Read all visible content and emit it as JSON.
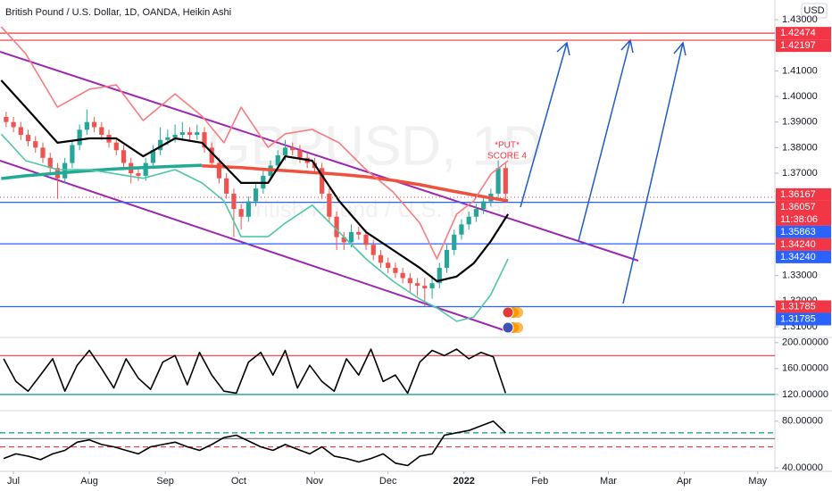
{
  "title": "British Pound / U.S. Dollar, 1D, OANDA, Heikin Ashi",
  "currency": "USD",
  "watermark": "GBPUSD, 1D",
  "watermark_subtitle": "British Pound / U.S. Dollar",
  "annotations": [
    "*PUT*",
    "SCORE 4"
  ],
  "chart_data": [
    {
      "type": "candlestick",
      "xlim": [
        -5.5,
        311
      ],
      "ylim": [
        1.3058,
        1.4377
      ],
      "yticks": [
        {
          "value": 1.43,
          "label": "1.43000"
        },
        {
          "value": 1.41,
          "label": "1.41000"
        },
        {
          "value": 1.4,
          "label": "1.40000"
        },
        {
          "value": 1.39,
          "label": "1.39000"
        },
        {
          "value": 1.38,
          "label": "1.38000"
        },
        {
          "value": 1.37,
          "label": "1.37000"
        },
        {
          "value": 1.33,
          "label": "1.33000"
        },
        {
          "value": 1.32,
          "label": "1.32000"
        },
        {
          "value": 1.31,
          "label": "1.31000"
        }
      ],
      "up_color": "#26a69a",
      "down_color": "#ef5350",
      "x": [
        -3,
        0,
        3,
        6,
        9,
        12,
        15,
        18,
        21,
        24,
        27,
        30,
        33,
        36,
        39,
        42,
        45,
        48,
        51,
        54,
        57,
        60,
        63,
        66,
        69,
        72,
        75,
        78,
        81,
        84,
        87,
        90,
        93,
        96,
        99,
        102,
        105,
        108,
        111,
        114,
        117,
        120,
        123,
        126,
        129,
        132,
        135,
        138,
        141,
        144,
        147,
        150,
        153,
        156,
        159,
        162,
        165,
        168,
        171,
        174,
        177,
        180,
        183,
        186,
        189,
        192,
        195,
        198,
        201
      ],
      "open": [
        1.392,
        1.39,
        1.388,
        1.385,
        1.3825,
        1.38,
        1.376,
        1.372,
        1.368,
        1.374,
        1.381,
        1.387,
        1.39,
        1.388,
        1.385,
        1.382,
        1.379,
        1.374,
        1.37,
        1.369,
        1.374,
        1.379,
        1.383,
        1.384,
        1.385,
        1.386,
        1.385,
        1.386,
        1.38,
        1.374,
        1.368,
        1.362,
        1.356,
        1.353,
        1.359,
        1.364,
        1.369,
        1.373,
        1.377,
        1.38,
        1.379,
        1.376,
        1.374,
        1.372,
        1.362,
        1.353,
        1.345,
        1.343,
        1.347,
        1.346,
        1.342,
        1.338,
        1.335,
        1.333,
        1.331,
        1.329,
        1.327,
        1.326,
        1.325,
        1.327,
        1.333,
        1.34,
        1.346,
        1.35,
        1.353,
        1.356,
        1.359,
        1.362,
        1.372
      ],
      "high": [
        1.394,
        1.392,
        1.39,
        1.387,
        1.3845,
        1.382,
        1.378,
        1.374,
        1.376,
        1.383,
        1.389,
        1.395,
        1.392,
        1.39,
        1.387,
        1.384,
        1.381,
        1.376,
        1.372,
        1.376,
        1.381,
        1.388,
        1.387,
        1.389,
        1.39,
        1.388,
        1.389,
        1.388,
        1.382,
        1.376,
        1.37,
        1.364,
        1.358,
        1.361,
        1.366,
        1.371,
        1.375,
        1.379,
        1.383,
        1.382,
        1.381,
        1.378,
        1.376,
        1.374,
        1.364,
        1.355,
        1.347,
        1.35,
        1.349,
        1.348,
        1.344,
        1.34,
        1.337,
        1.335,
        1.333,
        1.331,
        1.329,
        1.329,
        1.33,
        1.335,
        1.342,
        1.348,
        1.352,
        1.355,
        1.358,
        1.361,
        1.364,
        1.375,
        1.374
      ],
      "low": [
        1.388,
        1.386,
        1.383,
        1.3805,
        1.378,
        1.374,
        1.37,
        1.36,
        1.366,
        1.372,
        1.379,
        1.385,
        1.386,
        1.383,
        1.38,
        1.377,
        1.372,
        1.366,
        1.367,
        1.367,
        1.372,
        1.377,
        1.381,
        1.382,
        1.383,
        1.383,
        1.383,
        1.378,
        1.372,
        1.366,
        1.36,
        1.345,
        1.348,
        1.351,
        1.357,
        1.362,
        1.367,
        1.371,
        1.375,
        1.377,
        1.374,
        1.372,
        1.37,
        1.36,
        1.351,
        1.34,
        1.34,
        1.341,
        1.344,
        1.34,
        1.336,
        1.333,
        1.331,
        1.329,
        1.327,
        1.323,
        1.322,
        1.318,
        1.321,
        1.325,
        1.331,
        1.338,
        1.344,
        1.348,
        1.351,
        1.354,
        1.357,
        1.36,
        1.36
      ],
      "close": [
        1.39,
        1.388,
        1.385,
        1.3825,
        1.38,
        1.376,
        1.372,
        1.368,
        1.374,
        1.381,
        1.387,
        1.39,
        1.388,
        1.385,
        1.382,
        1.379,
        1.374,
        1.37,
        1.369,
        1.374,
        1.379,
        1.383,
        1.384,
        1.385,
        1.386,
        1.385,
        1.386,
        1.38,
        1.374,
        1.368,
        1.362,
        1.356,
        1.353,
        1.359,
        1.364,
        1.369,
        1.373,
        1.377,
        1.38,
        1.379,
        1.376,
        1.374,
        1.372,
        1.362,
        1.353,
        1.345,
        1.343,
        1.347,
        1.346,
        1.342,
        1.338,
        1.335,
        1.333,
        1.331,
        1.329,
        1.327,
        1.326,
        1.325,
        1.327,
        1.333,
        1.34,
        1.346,
        1.35,
        1.353,
        1.356,
        1.359,
        1.362,
        1.372,
        1.362
      ],
      "line_x": [
        -5,
        5,
        18,
        31,
        42,
        53,
        66,
        77,
        86,
        93,
        104,
        111,
        122,
        133,
        144,
        155,
        166,
        173,
        181,
        188,
        195,
        202
      ],
      "lines": [
        {
          "color": "#000000",
          "values": [
            1.4063,
            1.3958,
            1.3819,
            1.3836,
            1.3836,
            1.3766,
            1.3836,
            1.3819,
            1.3731,
            1.3662,
            1.3662,
            1.3766,
            1.3749,
            1.3592,
            1.347,
            1.34,
            1.333,
            1.3278,
            1.3296,
            1.3348,
            1.3435,
            1.354
          ]
        },
        {
          "color": "#f77c80",
          "values": [
            1.4272,
            1.4167,
            1.3958,
            1.4028,
            1.4045,
            1.3906,
            1.401,
            1.3923,
            1.3819,
            1.3958,
            1.3801,
            1.3854,
            1.3871,
            1.3819,
            1.3714,
            1.3627,
            1.3505,
            1.3365,
            1.354,
            1.3592,
            1.3697,
            1.3749
          ]
        },
        {
          "color": "#4fc7a8",
          "values": [
            1.3853,
            1.3749,
            1.3714,
            1.3714,
            1.3697,
            1.368,
            1.3714,
            1.3662,
            1.3592,
            1.3452,
            1.3452,
            1.3505,
            1.3575,
            1.347,
            1.3365,
            1.3278,
            1.3208,
            1.3173,
            1.3121,
            1.3138,
            1.3226,
            1.3365
          ]
        }
      ],
      "moving_averages": [
        {
          "color": "#22ab94",
          "values": [
            1.3679,
            1.369,
            1.37,
            1.371,
            1.3717,
            1.3722,
            1.3727,
            1.3731,
            null,
            null,
            null,
            null,
            null,
            null,
            null,
            null,
            null,
            null,
            null,
            null,
            null,
            null
          ]
        },
        {
          "color": "#f0513f",
          "values": [
            null,
            null,
            null,
            null,
            null,
            null,
            null,
            1.3729,
            1.3725,
            1.3722,
            1.3714,
            1.371,
            1.3703,
            1.3696,
            1.3686,
            1.3672,
            1.3655,
            1.3642,
            1.3627,
            1.3615,
            1.3603,
            1.3592
          ]
        }
      ],
      "levels": [
        {
          "value": 1.42474,
          "color": "#f23645"
        },
        {
          "value": 1.42197,
          "color": "#f23645"
        },
        {
          "value": 1.35863,
          "color": "#2962ff"
        },
        {
          "value": 1.3424,
          "color": "#2962ff"
        },
        {
          "value": 1.31785,
          "color": "#2962ff"
        }
      ],
      "price_labels": [
        {
          "value": 1.42474,
          "label": "1.42474",
          "color": "#f23645"
        },
        {
          "value": 1.42197,
          "label": "1.42197",
          "color": "#f23645"
        },
        {
          "value": 1.36167,
          "label": "1.36167",
          "color": "#f23645"
        },
        {
          "value": 1.36057,
          "label": "1.36057",
          "color": "#f23645",
          "countdown": "11:38:06"
        },
        {
          "value": 1.35863,
          "label": "1.35863",
          "color": "#2962ff"
        },
        {
          "value": 1.3424,
          "label": "1.34240",
          "color": "#f23645"
        },
        {
          "value": 1.3424,
          "label": "1.34240",
          "color": "#2962ff"
        },
        {
          "value": 1.31785,
          "label": "1.31785",
          "color": "#f23645"
        },
        {
          "value": 1.31785,
          "label": "1.31785",
          "color": "#2962ff"
        }
      ]
    },
    {
      "type": "line",
      "xlim": [
        -5.5,
        311
      ],
      "ylim": [
        95,
        208
      ],
      "yticks": [
        {
          "value": 200,
          "label": "200.00000"
        },
        {
          "value": 160,
          "label": "160.00000"
        },
        {
          "value": 120,
          "label": "120.00000"
        }
      ],
      "color": "#000000",
      "x": [
        -4,
        1,
        6,
        11,
        16,
        21,
        26,
        31,
        36,
        41,
        46,
        51,
        56,
        61,
        66,
        71,
        76,
        81,
        86,
        91,
        96,
        101,
        106,
        111,
        116,
        121,
        126,
        131,
        136,
        141,
        146,
        151,
        156,
        161,
        166,
        171,
        176,
        181,
        186,
        191,
        196,
        201
      ],
      "values": [
        175,
        140,
        125,
        150,
        175,
        125,
        165,
        188,
        160,
        130,
        175,
        145,
        128,
        170,
        180,
        135,
        185,
        150,
        125,
        122,
        170,
        185,
        150,
        188,
        130,
        165,
        140,
        125,
        175,
        150,
        190,
        140,
        150,
        122,
        170,
        188,
        180,
        190,
        175,
        185,
        178,
        122
      ],
      "levels": [
        {
          "value": 180,
          "color": "#f23645"
        },
        {
          "value": 120,
          "color": "#089981"
        }
      ]
    },
    {
      "type": "line",
      "xlim": [
        -5.5,
        311
      ],
      "ylim": [
        37,
        89
      ],
      "yticks": [
        {
          "value": 80,
          "label": "80.00000"
        },
        {
          "value": 40,
          "label": "40.00000"
        }
      ],
      "xticks": [
        {
          "value": 0,
          "label": "Jul"
        },
        {
          "value": 31,
          "label": "Aug"
        },
        {
          "value": 62,
          "label": "Sep"
        },
        {
          "value": 92,
          "label": "Oct"
        },
        {
          "value": 123,
          "label": "Nov"
        },
        {
          "value": 153,
          "label": "Dec"
        },
        {
          "value": 184,
          "label": "2022"
        },
        {
          "value": 215,
          "label": "Feb"
        },
        {
          "value": 243,
          "label": "Mar"
        },
        {
          "value": 274,
          "label": "Apr"
        },
        {
          "value": 304,
          "label": "May"
        }
      ],
      "color": "#000000",
      "x": [
        -4,
        1,
        6,
        11,
        16,
        21,
        26,
        31,
        36,
        41,
        46,
        51,
        56,
        61,
        66,
        71,
        76,
        81,
        86,
        91,
        96,
        101,
        106,
        111,
        116,
        121,
        126,
        131,
        136,
        141,
        146,
        151,
        156,
        161,
        166,
        171,
        176,
        181,
        186,
        191,
        196,
        201
      ],
      "values": [
        48,
        52,
        50,
        47,
        52,
        55,
        62,
        64,
        60,
        58,
        55,
        52,
        58,
        60,
        62,
        58,
        55,
        60,
        66,
        68,
        63,
        58,
        55,
        60,
        56,
        52,
        58,
        50,
        48,
        45,
        48,
        52,
        44,
        42,
        50,
        52,
        68,
        70,
        72,
        76,
        80,
        70
      ],
      "levels": [
        {
          "value": 70,
          "color": "#089981",
          "dashed": true
        },
        {
          "value": 65,
          "color": "#787b86"
        },
        {
          "value": 58,
          "color": "#f23645",
          "dashed": true
        }
      ]
    }
  ]
}
